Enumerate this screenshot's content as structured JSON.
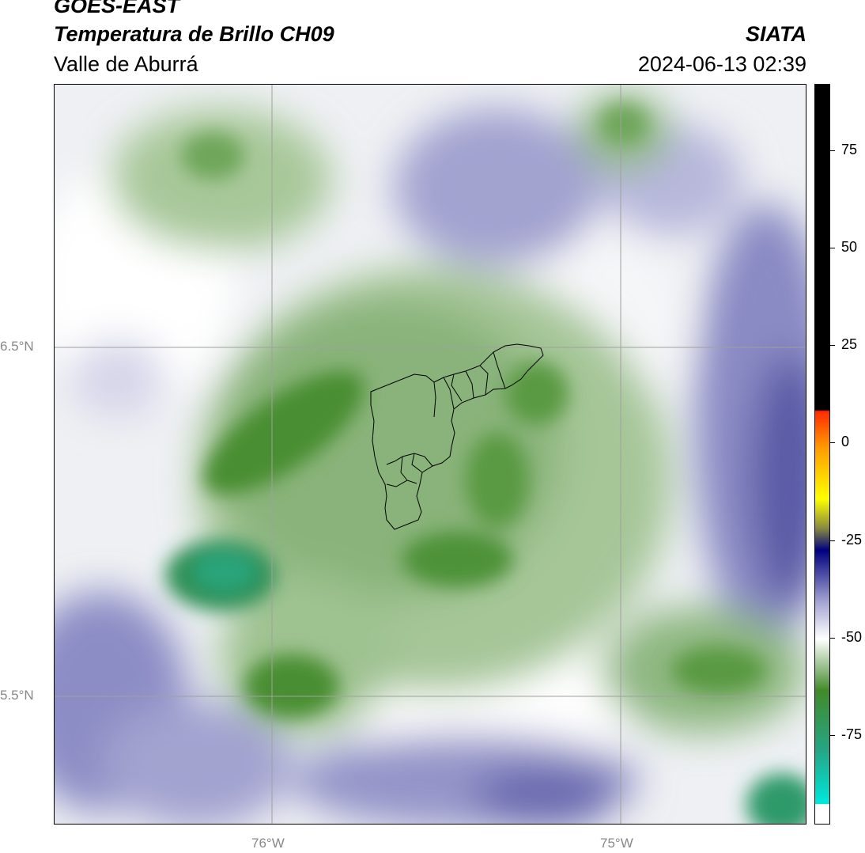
{
  "header": {
    "satellite": "GOES-EAST",
    "product": "Temperatura de Brillo CH09",
    "region": "Valle de Aburrá",
    "organization": "SIATA",
    "datetime": "2024-06-13 02:39"
  },
  "map": {
    "lat_labels": [
      {
        "label": "6.5°N",
        "value": 6.5
      },
      {
        "label": "5.5°N",
        "value": 5.5
      }
    ],
    "lon_labels": [
      {
        "label": "76°W",
        "value": -76
      },
      {
        "label": "75°W",
        "value": -75
      }
    ],
    "gridline_color": "#a0a0a0",
    "boundary_color": "#000000"
  },
  "colorbar": {
    "ticks": [
      {
        "label": "75",
        "value": 75
      },
      {
        "label": "50",
        "value": 50
      },
      {
        "label": "25",
        "value": 25
      },
      {
        "label": "0",
        "value": 0
      },
      {
        "label": "-25",
        "value": -25
      },
      {
        "label": "-50",
        "value": -50
      },
      {
        "label": "-75",
        "value": -75
      }
    ],
    "colors": {
      "warm": "#000000",
      "red": "#ff2a00",
      "orange": "#ff9900",
      "yellow": "#ffff00",
      "navy": "#000080",
      "lavender": "#a4a4d2",
      "white": "#ffffff",
      "green": "#428a2a",
      "teal": "#25a585",
      "cyan": "#00e5d8"
    }
  }
}
